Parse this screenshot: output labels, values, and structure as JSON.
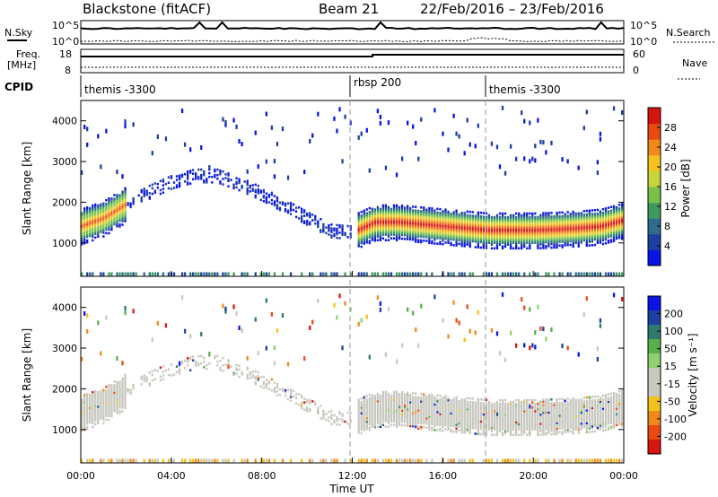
{
  "header": {
    "title": "Blackstone (fitACF)",
    "beam": "Beam 21",
    "date_range": "22/Feb/2016 – 23/Feb/2016"
  },
  "strip": {
    "nsky_label": "N.Sky",
    "nsearch_label": "N.Search",
    "noise_tick_top": "10^5",
    "noise_tick_bottom": "10^0",
    "freq_label": "Freq.",
    "freq_unit": "[MHz]",
    "freq_ticks": [
      "18",
      "8"
    ],
    "nave_ticks": [
      "60",
      "0"
    ],
    "nave_label": "Nave",
    "cpid_label": "CPID",
    "cpid_segments": [
      {
        "name": "themis -3300",
        "start_h": 0,
        "end_h": 12
      },
      {
        "name": "rbsp 200",
        "start_h": 12,
        "end_h": 18
      },
      {
        "name": "themis -3300",
        "start_h": 18,
        "end_h": 24
      }
    ]
  },
  "axes": {
    "xlabel": "Time UT",
    "xticks": [
      "00:00",
      "04:00",
      "08:00",
      "12:00",
      "16:00",
      "20:00",
      "00:00"
    ],
    "xlim_hours": [
      0,
      24
    ],
    "ylabel": "Slant Range [km]",
    "yticks": [
      1000,
      2000,
      3000,
      4000
    ],
    "ylim_km": [
      180,
      4500
    ]
  },
  "colorbars": {
    "power": {
      "label": "Power [dB]",
      "ticks": [
        "4",
        "8",
        "12",
        "16",
        "20",
        "24",
        "28"
      ],
      "range": [
        0,
        32
      ],
      "colors": [
        "#0a14e6",
        "#1c3fa0",
        "#2e6b8c",
        "#3f9a5e",
        "#7ac14a",
        "#c7d33b",
        "#f5c21f",
        "#f08a1a",
        "#e84a12",
        "#d6140f"
      ]
    },
    "velocity": {
      "label": "Velocity [m s⁻¹]",
      "ticks": [
        "200",
        "100",
        "50",
        "15",
        "-15",
        "-50",
        "-100",
        "-200"
      ],
      "colors": [
        "#0a14e6",
        "#1c3fa0",
        "#2e7a6c",
        "#57b04a",
        "#8fd070",
        "#c8c8c0",
        "#c8c8c0",
        "#f2c21a",
        "#f08a1a",
        "#ea4a12",
        "#d61410"
      ]
    }
  },
  "chart_data": {
    "type": "heatmap",
    "panels": [
      "power",
      "velocity"
    ],
    "x": "time_hours",
    "y": "slant_range_km",
    "main_echo_band": [
      {
        "t": 0.0,
        "range_km": 1400
      },
      {
        "t": 1.0,
        "range_km": 1600
      },
      {
        "t": 2.0,
        "range_km": 1950
      },
      {
        "t": 3.0,
        "range_km": 2250
      },
      {
        "t": 4.0,
        "range_km": 2500
      },
      {
        "t": 5.0,
        "range_km": 2650
      },
      {
        "t": 6.0,
        "range_km": 2650
      },
      {
        "t": 7.0,
        "range_km": 2450
      },
      {
        "t": 8.0,
        "range_km": 2200
      },
      {
        "t": 9.0,
        "range_km": 1900
      },
      {
        "t": 10.0,
        "range_km": 1600
      },
      {
        "t": 11.0,
        "range_km": 1300
      },
      {
        "t": 12.0,
        "range_km": 1250
      },
      {
        "t": 13.0,
        "range_km": 1500
      },
      {
        "t": 14.0,
        "range_km": 1500
      },
      {
        "t": 15.0,
        "range_km": 1450
      },
      {
        "t": 16.0,
        "range_km": 1400
      },
      {
        "t": 17.0,
        "range_km": 1350
      },
      {
        "t": 18.0,
        "range_km": 1300
      },
      {
        "t": 19.0,
        "range_km": 1300
      },
      {
        "t": 20.0,
        "range_km": 1300
      },
      {
        "t": 21.0,
        "range_km": 1320
      },
      {
        "t": 22.0,
        "range_km": 1350
      },
      {
        "t": 23.0,
        "range_km": 1400
      },
      {
        "t": 24.0,
        "range_km": 1550
      }
    ]
  }
}
